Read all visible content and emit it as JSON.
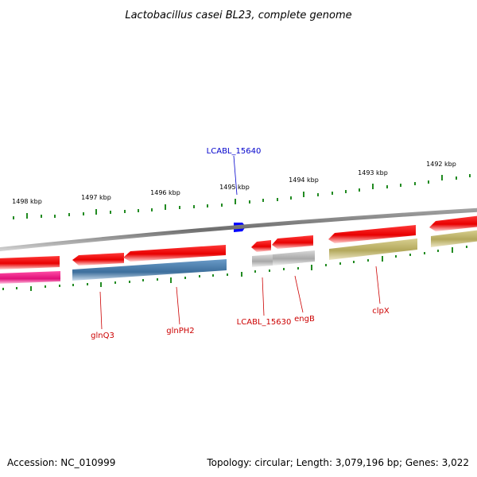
{
  "title": "Lactobacillus casei BL23, complete genome",
  "footer": {
    "accession": "Accession: NC_010999",
    "summary": "Topology: circular; Length: 3,079,196 bp; Genes: 3,022"
  },
  "scale_labels": [
    "1498 kbp",
    "1497 kbp",
    "1496 kbp",
    "1495 kbp",
    "1494 kbp",
    "1493 kbp",
    "1492 kbp"
  ],
  "gene_labels": {
    "glnQ3": "glnQ3",
    "glnPH2": "glnPH2",
    "lcabl_15630": "LCABL_15630",
    "engB": "engB",
    "clpX": "clpX",
    "lcabl_15640": "LCABL_15640"
  },
  "colors": {
    "cds": "#ff0000",
    "feature_magenta": "#ff1493",
    "feature_blue": "#4682b4",
    "feature_grey": "#c0c0c0",
    "feature_khaki": "#c8be78",
    "backbone": "#808080",
    "ticks": "#228b22",
    "marker": "#0000ff"
  }
}
